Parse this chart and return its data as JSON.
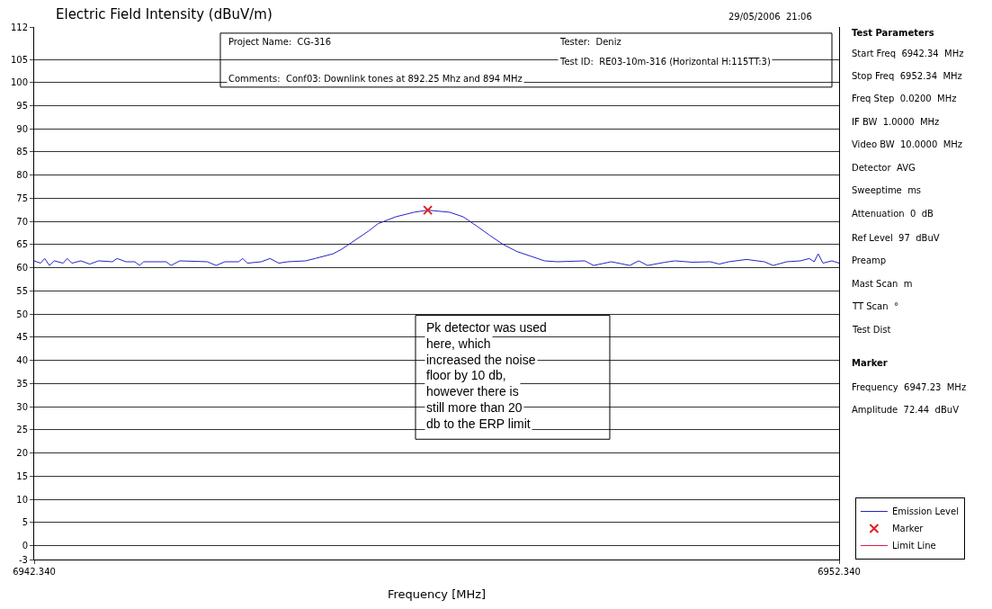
{
  "chart_data": {
    "type": "line",
    "title": "Electric Field Intensity (dBuV/m)",
    "xlabel": "Frequency [MHz]",
    "xlim": [
      6942.34,
      6952.34
    ],
    "xticks": [
      {
        "value": 6942.34,
        "label": "6942.340"
      },
      {
        "value": 6952.34,
        "label": "6952.340"
      }
    ],
    "ylim": [
      -3,
      112
    ],
    "yticks": [
      -3,
      0,
      5,
      10,
      15,
      20,
      25,
      30,
      35,
      40,
      45,
      50,
      55,
      60,
      65,
      70,
      75,
      80,
      85,
      90,
      95,
      100,
      105,
      112
    ],
    "grid": "y",
    "legend": "bottom right",
    "series": [
      {
        "name": "Emission Level",
        "color": "#2323c8",
        "marker": "none",
        "line_style": "solid",
        "x": [
          6942.34,
          6942.42,
          6942.47,
          6942.53,
          6942.59,
          6942.7,
          6942.75,
          6942.81,
          6942.92,
          6943.03,
          6943.14,
          6943.31,
          6943.37,
          6943.48,
          6943.59,
          6943.65,
          6943.7,
          6943.98,
          6944.04,
          6944.15,
          6944.49,
          6944.6,
          6944.71,
          6944.88,
          6944.93,
          6944.99,
          6945.16,
          6945.27,
          6945.38,
          6945.49,
          6945.71,
          6945.83,
          6946.05,
          6946.16,
          6946.33,
          6946.5,
          6946.61,
          6946.83,
          6947.06,
          6947.23,
          6947.5,
          6947.67,
          6947.84,
          6948.0,
          6948.17,
          6948.34,
          6948.51,
          6948.68,
          6948.84,
          6949.18,
          6949.29,
          6949.51,
          6949.74,
          6949.85,
          6949.96,
          6950.18,
          6950.3,
          6950.52,
          6950.74,
          6950.85,
          6950.97,
          6951.19,
          6951.41,
          6951.52,
          6951.69,
          6951.86,
          6951.97,
          6952.03,
          6952.08,
          6952.14,
          6952.25,
          6952.34
        ],
        "values": [
          61.5,
          61,
          62,
          60.5,
          61.5,
          61,
          62,
          61,
          61.5,
          60.8,
          61.5,
          61.3,
          62,
          61.3,
          61.3,
          60.5,
          61.3,
          61.3,
          60.5,
          61.5,
          61.3,
          60.5,
          61.3,
          61.3,
          62,
          61,
          61.3,
          62,
          61,
          61.3,
          61.5,
          62,
          63,
          64,
          66,
          68,
          69.5,
          71,
          72,
          72.44,
          72,
          71,
          69,
          67,
          65,
          63.5,
          62.5,
          61.5,
          61.3,
          61.5,
          60.5,
          61.3,
          60.5,
          61.5,
          60.5,
          61.2,
          61.5,
          61.2,
          61.3,
          60.8,
          61.3,
          61.8,
          61.3,
          60.5,
          61.3,
          61.5,
          62,
          61.3,
          63,
          61,
          61.5,
          61
        ]
      },
      {
        "name": "Marker",
        "type": "scatter",
        "color": "#e02020",
        "marker": "cross",
        "x": [
          6947.23
        ],
        "values": [
          72.44
        ]
      },
      {
        "name": "Limit Line",
        "color": "#e8174a",
        "marker": "none",
        "line_style": "solid",
        "values": [
          null
        ]
      }
    ],
    "annotations": [
      "29/05/2006  21:06",
      "Project Name:  CG-316",
      "Tester:  Deniz",
      "Test ID:  RE03-10m-316 (Horizontal H:115TT:3)",
      "Comments:  Conf03: Downlink tones at 892.25 Mhz and 894 MHz",
      "Pk detector was used here, which increased the noise floor by 10 db, however there is still more than 20 db to the ERP limit",
      "Test Parameters",
      "Start Freq  6942.34  MHz",
      "Stop Freq  6952.34  MHz",
      "Freq Step  0.0200  MHz",
      "IF BW  1.0000  MHz",
      "Video BW  10.0000  MHz",
      "Detector  AVG",
      "Sweeptime  ms",
      "Attenuation  0  dB",
      "Ref Level  97  dBuV",
      "Preamp",
      "Mast Scan  m",
      "TT Scan  °",
      "Test Dist",
      "Marker",
      "Frequency  6947.23  MHz",
      "Amplitude  72.44  dBuV"
    ]
  }
}
